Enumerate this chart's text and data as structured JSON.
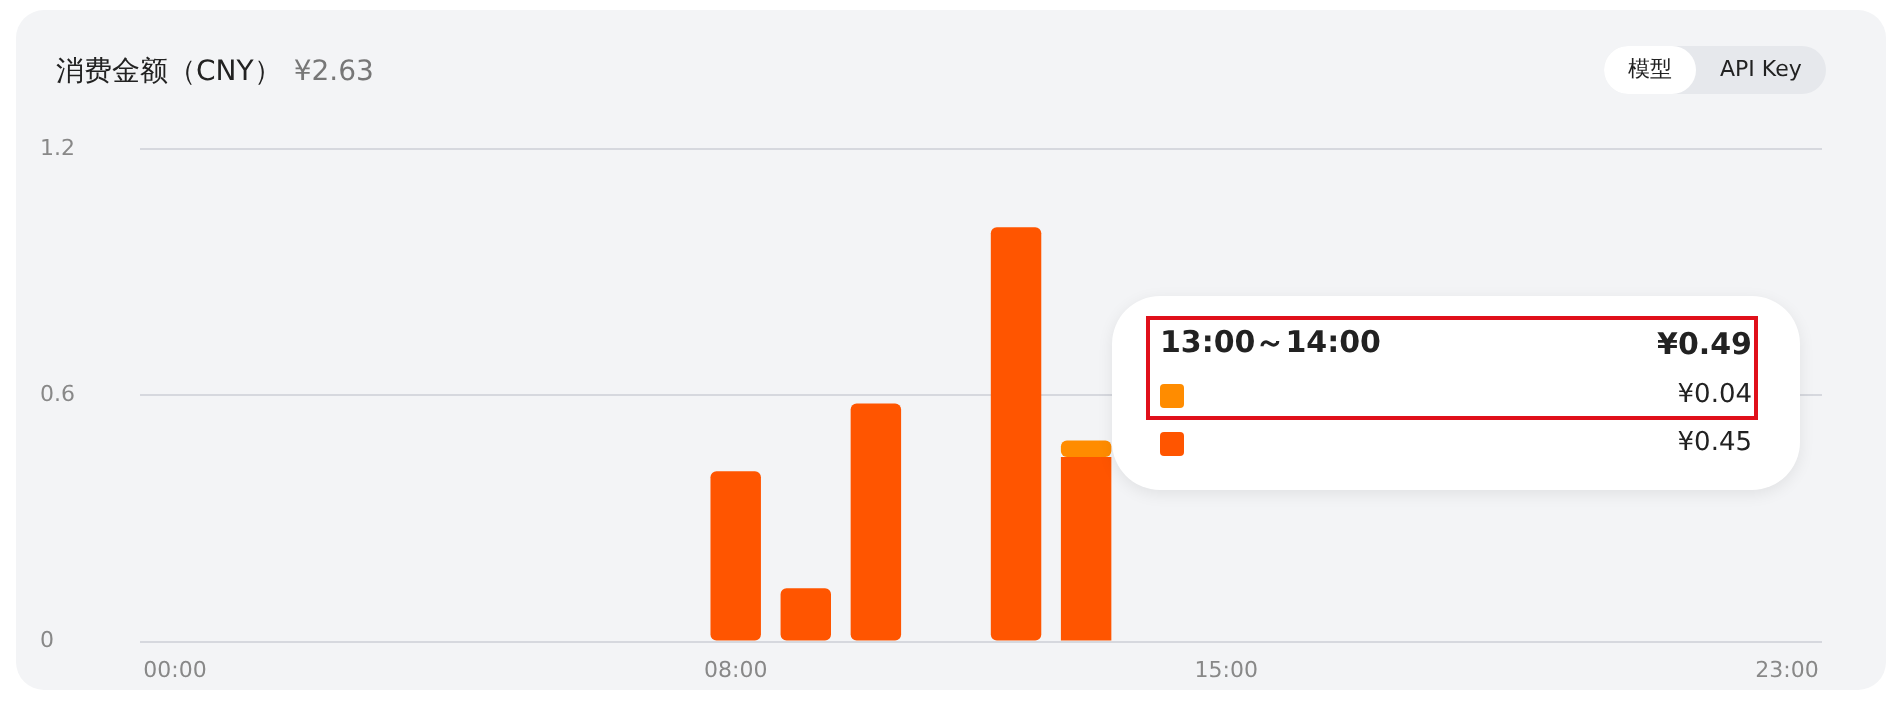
{
  "chart_data": {
    "type": "bar",
    "title": "消费金额（CNY）",
    "subtitle": "¥2.63",
    "categories": [
      "00:00",
      null,
      null,
      null,
      null,
      null,
      null,
      null,
      "08:00",
      null,
      null,
      null,
      null,
      null,
      null,
      "15:00",
      null,
      null,
      null,
      null,
      null,
      null,
      null,
      "23:00"
    ],
    "stacked": true,
    "series": [
      {
        "color": "#ff5500",
        "values": [
          null,
          null,
          null,
          null,
          null,
          null,
          null,
          null,
          0.415,
          0.13,
          0.58,
          null,
          1.01,
          0.45,
          null,
          null,
          null,
          null,
          null,
          null,
          null,
          null,
          null,
          null
        ]
      },
      {
        "color": "#ff8c00",
        "values": [
          null,
          null,
          null,
          null,
          null,
          null,
          null,
          null,
          null,
          null,
          null,
          null,
          null,
          0.04,
          null,
          null,
          null,
          null,
          null,
          null,
          null,
          null,
          null,
          null
        ]
      }
    ],
    "ylim": [
      0,
      1.2
    ],
    "yticks": [
      0,
      0.6,
      1.2
    ],
    "grid": "y",
    "legend": false,
    "annotations": [
      "模型",
      "API Key",
      "13:00～14:00",
      "¥0.49",
      "¥0.04",
      "¥0.45"
    ]
  }
}
